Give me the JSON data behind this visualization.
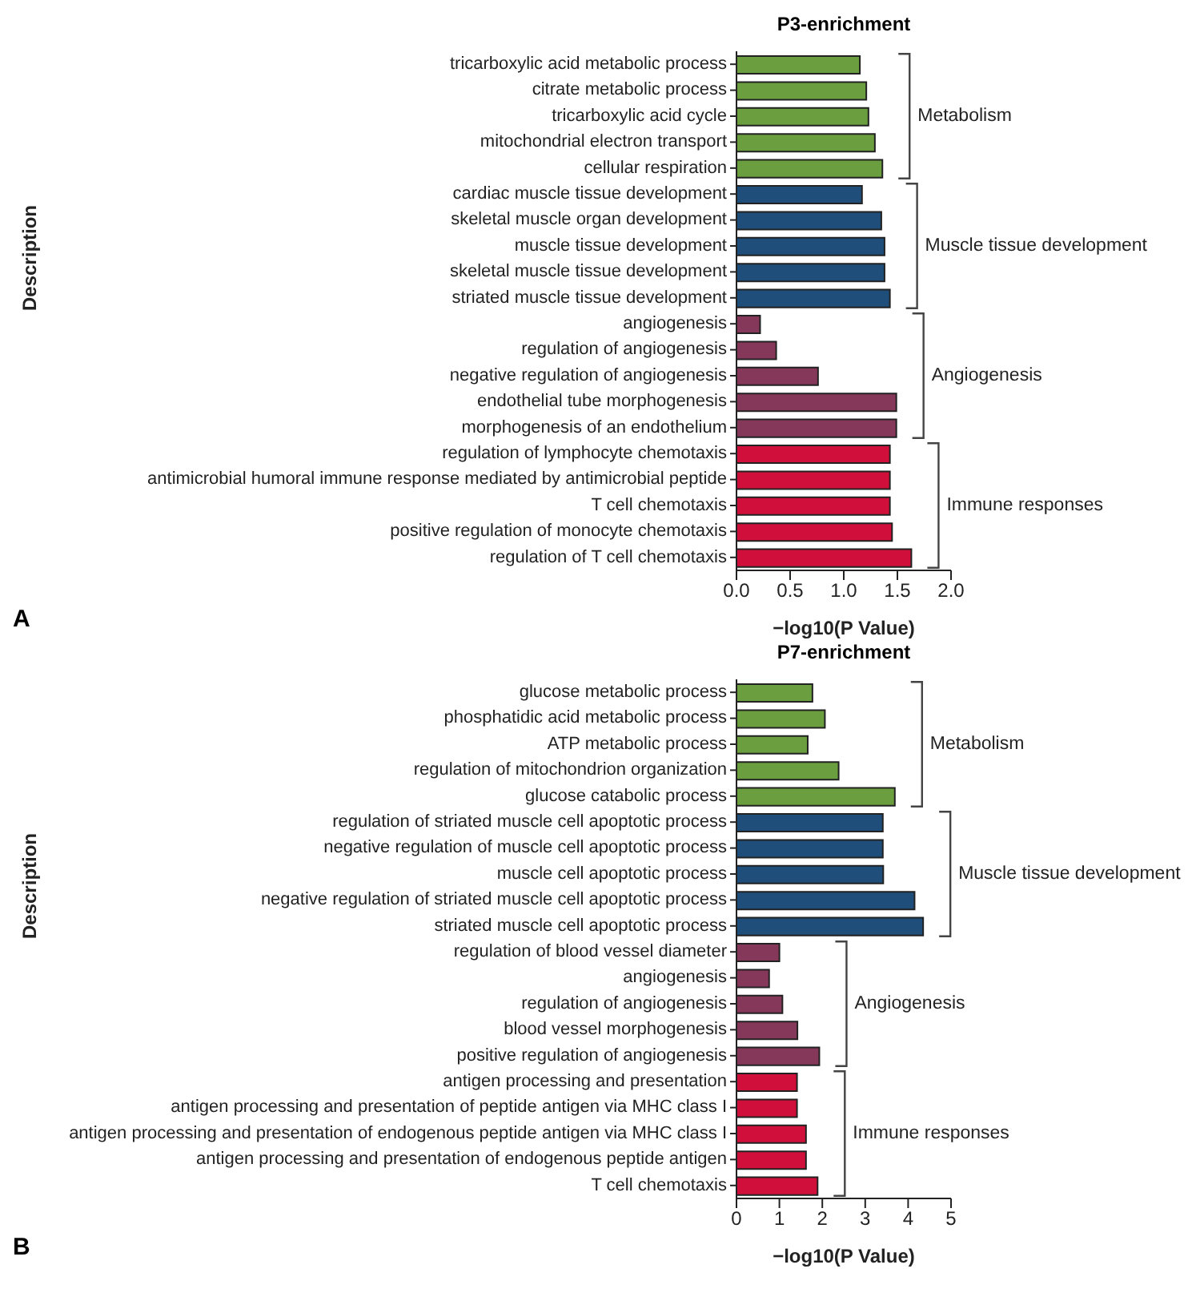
{
  "chart_data": [
    {
      "type": "bar",
      "orientation": "horizontal",
      "title": "P3-enrichment",
      "xlabel": "−log10(P Value)",
      "ylabel": "Description",
      "categories": [
        "tricarboxylic acid metabolic process",
        "citrate metabolic process",
        "tricarboxylic acid cycle",
        "mitochondrial electron transport",
        "cellular respiration",
        "cardiac muscle tissue development",
        "skeletal muscle organ development",
        "muscle tissue development",
        "skeletal muscle tissue development",
        "striated muscle tissue development",
        "angiogenesis",
        "regulation of angiogenesis",
        "negative regulation of angiogenesis",
        "endothelial tube morphogenesis",
        "morphogenesis of an endothelium",
        "regulation of lymphocyte chemotaxis",
        "antimicrobial humoral immune response mediated by antimicrobial peptide",
        "T cell chemotaxis",
        "positive regulation of monocyte chemotaxis",
        "regulation of T cell chemotaxis"
      ],
      "values": [
        1.15,
        1.21,
        1.23,
        1.29,
        1.36,
        1.17,
        1.35,
        1.38,
        1.38,
        1.43,
        0.22,
        0.37,
        0.76,
        1.49,
        1.49,
        1.43,
        1.43,
        1.43,
        1.45,
        1.63
      ],
      "colors": [
        "#6a9e3f",
        "#6a9e3f",
        "#6a9e3f",
        "#6a9e3f",
        "#6a9e3f",
        "#1f4e7a",
        "#1f4e7a",
        "#1f4e7a",
        "#1f4e7a",
        "#1f4e7a",
        "#86385a",
        "#86385a",
        "#86385a",
        "#86385a",
        "#86385a",
        "#d0103a",
        "#d0103a",
        "#d0103a",
        "#d0103a",
        "#d0103a"
      ],
      "xlim": [
        0,
        2
      ],
      "xticks": [
        {
          "value": 0,
          "label": "0.0"
        },
        {
          "value": 0.5,
          "label": "0.5"
        },
        {
          "value": 1,
          "label": "1.0"
        },
        {
          "value": 1.5,
          "label": "1.5"
        },
        {
          "value": 2,
          "label": "2.0"
        }
      ],
      "annotations": [
        "Metabolism",
        "Muscle tissue development",
        "Angiogenesis",
        "Immune responses",
        "A"
      ]
    },
    {
      "type": "bar",
      "orientation": "horizontal",
      "title": "P7-enrichment",
      "xlabel": "−log10(P Value)",
      "ylabel": "Description",
      "categories": [
        "glucose metabolic process",
        "phosphatidic acid metabolic process",
        "ATP metabolic process",
        "regulation of mitochondrion organization",
        "glucose catabolic process",
        "regulation of striated muscle cell apoptotic process",
        "negative regulation of muscle cell apoptotic process",
        "muscle cell apoptotic process",
        "negative regulation of striated muscle cell apoptotic process",
        "striated muscle cell apoptotic process",
        "regulation of blood vessel diameter",
        "angiogenesis",
        "regulation of angiogenesis",
        "blood vessel morphogenesis",
        "positive regulation of angiogenesis",
        "antigen processing and presentation",
        "antigen processing and presentation of peptide antigen via MHC class I",
        "antigen processing and presentation of endogenous peptide antigen via MHC class I",
        "antigen processing and presentation of endogenous peptide antigen",
        "T cell chemotaxis"
      ],
      "values": [
        1.77,
        2.06,
        1.66,
        2.38,
        3.69,
        3.41,
        3.41,
        3.42,
        4.15,
        4.35,
        1.0,
        0.76,
        1.07,
        1.42,
        1.93,
        1.41,
        1.41,
        1.62,
        1.62,
        1.89
      ],
      "colors": [
        "#6a9e3f",
        "#6a9e3f",
        "#6a9e3f",
        "#6a9e3f",
        "#6a9e3f",
        "#1f4e7a",
        "#1f4e7a",
        "#1f4e7a",
        "#1f4e7a",
        "#1f4e7a",
        "#86385a",
        "#86385a",
        "#86385a",
        "#86385a",
        "#86385a",
        "#d0103a",
        "#d0103a",
        "#d0103a",
        "#d0103a",
        "#d0103a"
      ],
      "xlim": [
        0,
        5
      ],
      "xticks": [
        0,
        1,
        2,
        3,
        4,
        5
      ],
      "annotations": [
        "Metabolism",
        "Muscle tissue development",
        "Angiogenesis",
        "Immune responses",
        "B"
      ]
    }
  ]
}
